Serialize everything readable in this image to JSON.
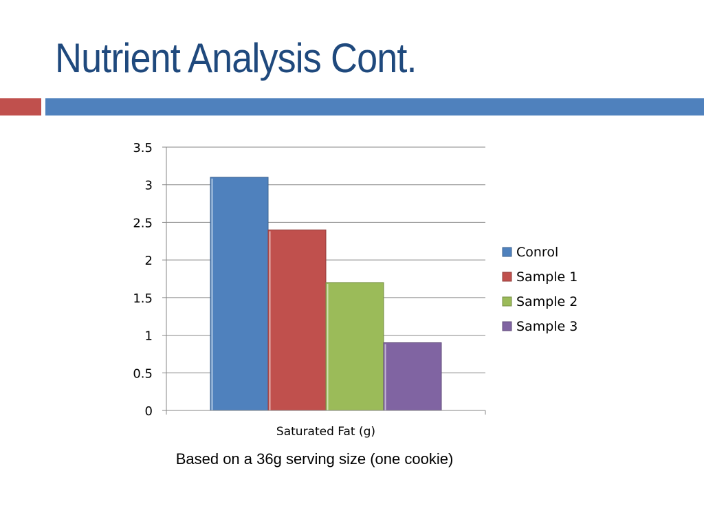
{
  "slide": {
    "title": "Nutrient Analysis Cont.",
    "footnote": "Based on a 36g serving size (one cookie)"
  },
  "theme": {
    "title_color": "#1f497d",
    "band_left_color": "#c0504d",
    "band_right_color": "#4f81bd"
  },
  "chart_data": {
    "type": "bar",
    "categories": [
      "Saturated Fat (g)"
    ],
    "series": [
      {
        "name": "Conrol",
        "values": [
          3.1
        ],
        "color": "#4f81bd"
      },
      {
        "name": "Sample 1",
        "values": [
          2.4
        ],
        "color": "#c0504d"
      },
      {
        "name": "Sample 2",
        "values": [
          1.7
        ],
        "color": "#9bbb59"
      },
      {
        "name": "Sample 3",
        "values": [
          0.9
        ],
        "color": "#8064a2"
      }
    ],
    "ylim": [
      0,
      3.5
    ],
    "yticks": [
      0,
      0.5,
      1,
      1.5,
      2,
      2.5,
      3,
      3.5
    ],
    "grid": true,
    "legend_position": "right"
  }
}
